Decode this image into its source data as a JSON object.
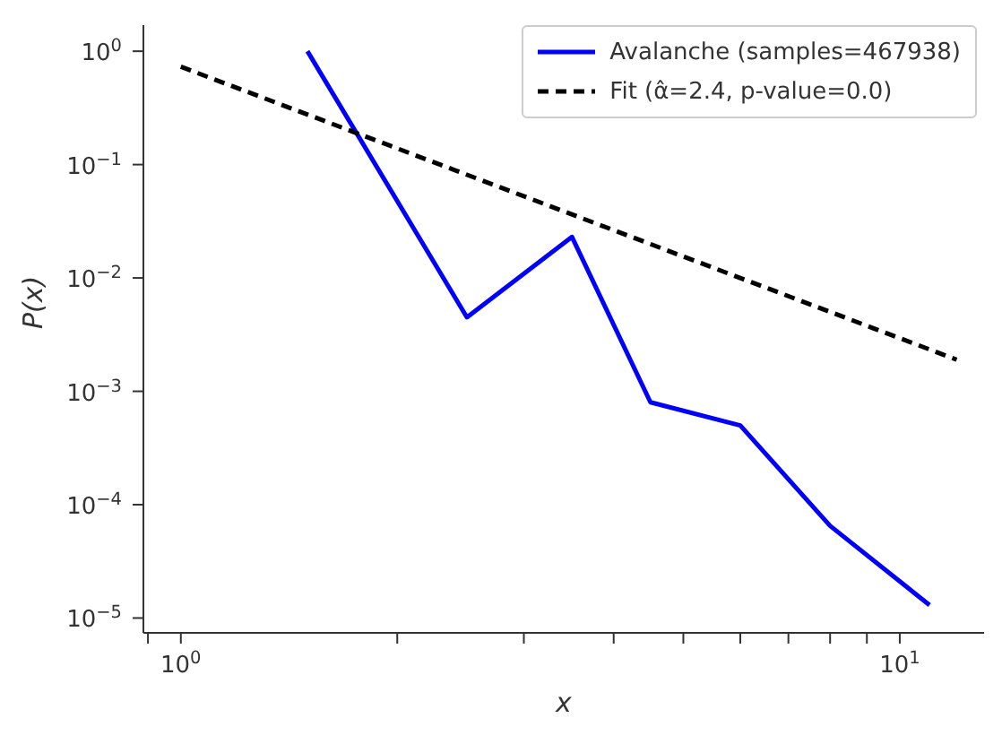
{
  "chart_data": {
    "type": "line",
    "xlabel": "x",
    "ylabel": "P(x)",
    "log": "xy",
    "legend": "top right",
    "xlim": [
      0.887,
      13.1
    ],
    "ylim": [
      7.4e-06,
      1.7
    ],
    "xticks": [
      {
        "value": 0.9,
        "label": null
      },
      {
        "value": 1,
        "label": "10$^{0}$"
      },
      {
        "value": 2,
        "label": null
      },
      {
        "value": 3,
        "label": null
      },
      {
        "value": 4,
        "label": null
      },
      {
        "value": 5,
        "label": null
      },
      {
        "value": 6,
        "label": null
      },
      {
        "value": 7,
        "label": null
      },
      {
        "value": 8,
        "label": null
      },
      {
        "value": 9,
        "label": null
      },
      {
        "value": 10,
        "label": "10$^{1}$"
      }
    ],
    "yticks": [
      {
        "value": 1e-05,
        "label": "10$^{−5}$"
      },
      {
        "value": 0.0001,
        "label": "10$^{−4}$"
      },
      {
        "value": 0.001,
        "label": "10$^{−3}$"
      },
      {
        "value": 0.01,
        "label": "10$^{−2}$"
      },
      {
        "value": 0.1,
        "label": "10$^{−1}$"
      },
      {
        "value": 1,
        "label": "10$^{0}$"
      }
    ],
    "series": [
      {
        "name": "Avalanche (samples=467938)",
        "color": "#0000ff",
        "line_style": "solid",
        "x": [
          1.5,
          2.5,
          3.5,
          4.5,
          6,
          8,
          11
        ],
        "values": [
          1.0,
          0.0045,
          0.023,
          0.0008,
          0.0005,
          6.5e-05,
          1.3e-05
        ]
      },
      {
        "name": "Fit (α̂=2.4, p-value=0.0)",
        "color": "#000000",
        "line_style": "dashed",
        "x": [
          1,
          12
        ],
        "values": [
          0.73,
          0.0019
        ]
      }
    ]
  }
}
